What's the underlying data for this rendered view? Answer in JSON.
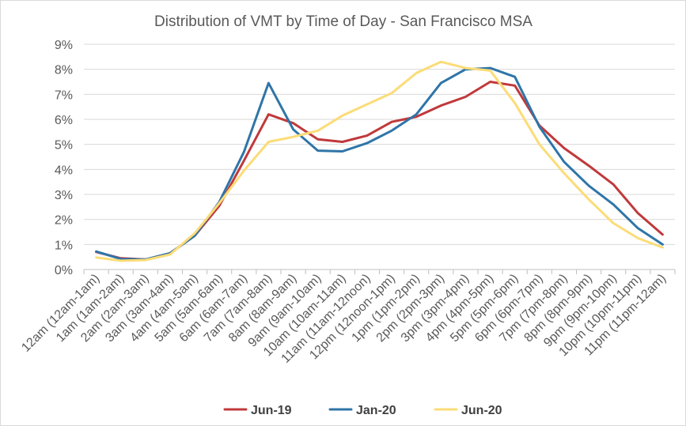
{
  "chart_data": {
    "type": "line",
    "title": "Distribution  of VMT by Time of Day - San Francisco  MSA",
    "xlabel": "",
    "ylabel": "",
    "ylim": [
      0,
      9
    ],
    "y_tick_labels": [
      "0%",
      "1%",
      "2%",
      "3%",
      "4%",
      "5%",
      "6%",
      "7%",
      "8%",
      "9%"
    ],
    "grid": "horizontal",
    "legend": "bottom",
    "categories": [
      "12am (12am-1am)",
      "1am (1am-2am)",
      "2am (2am-3am)",
      "3am (3am-4am)",
      "4am (4am-5am)",
      "5am (5am-6am)",
      "6am (6am-7am)",
      "7am (7am-8am)",
      "8am (8am-9am)",
      "9am (9am-10am)",
      "10am (10am-11am)",
      "11am (11am-12noon)",
      "12pm (12noon-1pm)",
      "1pm (1pm-2pm)",
      "2pm (2pm-3pm)",
      "3pm (3pm-4pm)",
      "4pm (4pm-5pm)",
      "5pm (5pm-6pm)",
      "6pm (6pm-7pm)",
      "7pm (7pm-8pm)",
      "8pm (8pm-9pm)",
      "9pm (9pm-10pm)",
      "10pm (10pm-11pm)",
      "11pm (11pm-12am)"
    ],
    "series": [
      {
        "name": "Jun-19",
        "color": "#c0393b",
        "values": [
          0.7,
          0.45,
          0.4,
          0.65,
          1.35,
          2.55,
          4.35,
          6.2,
          5.85,
          5.2,
          5.1,
          5.35,
          5.9,
          6.1,
          6.55,
          6.9,
          7.5,
          7.35,
          5.75,
          4.85,
          4.15,
          3.4,
          2.25,
          1.4
        ]
      },
      {
        "name": "Jan-20",
        "color": "#2f75a8",
        "values": [
          0.72,
          0.42,
          0.4,
          0.65,
          1.35,
          2.7,
          4.7,
          7.45,
          5.6,
          4.75,
          4.72,
          5.05,
          5.55,
          6.2,
          7.45,
          8.0,
          8.05,
          7.7,
          5.7,
          4.3,
          3.35,
          2.6,
          1.65,
          1.0
        ]
      },
      {
        "name": "Jun-20",
        "color": "#fbdc77",
        "values": [
          0.48,
          0.35,
          0.38,
          0.6,
          1.45,
          2.65,
          3.95,
          5.1,
          5.3,
          5.55,
          6.15,
          6.6,
          7.05,
          7.85,
          8.3,
          8.05,
          7.95,
          6.65,
          5.0,
          3.85,
          2.8,
          1.85,
          1.25,
          0.88
        ]
      }
    ]
  }
}
